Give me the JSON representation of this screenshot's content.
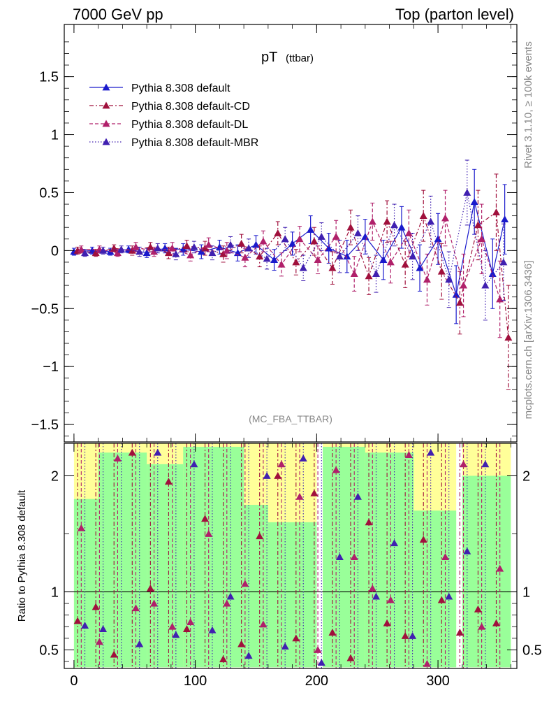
{
  "header": {
    "left": "7000 GeV pp",
    "right": "Top (parton level)"
  },
  "side_labels": {
    "rivet": "Rivet 3.1.10, ≥ 100k events",
    "mcplots": "mcplots.cern.ch [arXiv:1306.3436]"
  },
  "colors": {
    "default": "#1a1acc",
    "cd": "#a0103c",
    "dl": "#b0206a",
    "mbr": "#4020b0",
    "band_yellow": "#ffff99",
    "band_green": "#99ff99"
  },
  "chart_data": [
    {
      "type": "scatter",
      "title": "pT",
      "title_sub": "(ttbar)",
      "watermark": "(MC_FBA_TTBAR)",
      "xlabel": "",
      "ylabel": "",
      "xlim": [
        -8,
        365
      ],
      "ylim": [
        -1.65,
        1.95
      ],
      "yticks": [
        -1.5,
        -1,
        -0.5,
        0,
        0.5,
        1,
        1.5
      ],
      "ytick_labels": [
        "−1.5",
        "−1",
        "−0.5",
        "0",
        "0.5",
        "1",
        "1.5"
      ],
      "legend_position": "top-left",
      "series": [
        {
          "name": "Pythia 8.308 default",
          "style": "solid",
          "x": [
            0,
            15,
            30,
            45,
            60,
            75,
            90,
            105,
            120,
            135,
            150,
            165,
            180,
            195,
            210,
            225,
            240,
            255,
            270,
            285,
            300,
            315,
            330,
            345,
            355
          ],
          "y": [
            -0.01,
            0.0,
            -0.01,
            0.01,
            -0.02,
            0.02,
            0.01,
            -0.01,
            0.03,
            -0.02,
            0.05,
            -0.08,
            0.06,
            0.18,
            0.02,
            -0.05,
            0.12,
            -0.08,
            0.2,
            -0.15,
            0.1,
            -0.38,
            0.42,
            -0.2,
            0.27
          ],
          "err": [
            0.03,
            0.03,
            0.03,
            0.03,
            0.04,
            0.04,
            0.05,
            0.06,
            0.06,
            0.07,
            0.08,
            0.09,
            0.1,
            0.12,
            0.13,
            0.14,
            0.15,
            0.17,
            0.18,
            0.2,
            0.22,
            0.25,
            0.28,
            0.3,
            0.3
          ]
        },
        {
          "name": "Pythia 8.308 default-CD",
          "style": "dashdot",
          "x": [
            3,
            18,
            33,
            48,
            63,
            78,
            93,
            108,
            123,
            138,
            153,
            168,
            183,
            198,
            213,
            228,
            243,
            258,
            273,
            288,
            303,
            318,
            333,
            348,
            358
          ],
          "y": [
            0.0,
            -0.02,
            0.02,
            0.0,
            0.03,
            -0.02,
            0.04,
            0.02,
            -0.03,
            0.06,
            -0.05,
            0.15,
            -0.1,
            0.08,
            -0.15,
            0.2,
            -0.22,
            0.25,
            -0.12,
            0.3,
            -0.18,
            -0.45,
            0.22,
            0.33,
            -0.75
          ],
          "err": [
            0.03,
            0.03,
            0.03,
            0.04,
            0.04,
            0.05,
            0.05,
            0.06,
            0.07,
            0.08,
            0.09,
            0.1,
            0.11,
            0.12,
            0.14,
            0.15,
            0.16,
            0.18,
            0.2,
            0.22,
            0.24,
            0.27,
            0.3,
            0.33,
            0.45
          ]
        },
        {
          "name": "Pythia 8.308 default-DL",
          "style": "dashed",
          "x": [
            6,
            21,
            36,
            51,
            66,
            81,
            96,
            111,
            126,
            141,
            156,
            171,
            186,
            201,
            216,
            231,
            246,
            261,
            276,
            291,
            306,
            321,
            336,
            351
          ],
          "y": [
            0.01,
            0.01,
            -0.02,
            0.03,
            -0.01,
            0.02,
            -0.04,
            0.05,
            0.0,
            -0.06,
            0.08,
            -0.12,
            0.1,
            -0.08,
            0.12,
            -0.2,
            0.25,
            -0.1,
            0.15,
            -0.25,
            0.28,
            -0.3,
            0.1,
            -0.42
          ],
          "err": [
            0.03,
            0.03,
            0.03,
            0.04,
            0.04,
            0.05,
            0.05,
            0.06,
            0.07,
            0.08,
            0.09,
            0.1,
            0.11,
            0.12,
            0.14,
            0.15,
            0.16,
            0.18,
            0.2,
            0.22,
            0.24,
            0.27,
            0.3,
            0.33
          ]
        },
        {
          "name": "Pythia 8.308 default-MBR",
          "style": "dotted",
          "x": [
            9,
            24,
            39,
            54,
            69,
            84,
            99,
            114,
            129,
            144,
            159,
            174,
            189,
            204,
            219,
            234,
            249,
            264,
            279,
            294,
            309,
            324,
            339,
            354
          ],
          "y": [
            -0.02,
            0.0,
            0.01,
            -0.01,
            0.02,
            -0.03,
            0.03,
            -0.02,
            0.05,
            0.02,
            -0.07,
            0.1,
            -0.15,
            0.12,
            -0.05,
            0.15,
            -0.2,
            0.22,
            -0.05,
            0.25,
            -0.25,
            0.5,
            -0.3,
            -0.1
          ],
          "err": [
            0.03,
            0.03,
            0.03,
            0.04,
            0.04,
            0.05,
            0.05,
            0.06,
            0.07,
            0.08,
            0.09,
            0.1,
            0.11,
            0.12,
            0.14,
            0.15,
            0.16,
            0.18,
            0.2,
            0.22,
            0.24,
            0.28,
            0.3,
            0.33
          ]
        }
      ]
    },
    {
      "type": "scatter",
      "title": "",
      "ylabel": "Ratio to Pythia 8.308 default",
      "xlim": [
        -8,
        365
      ],
      "ylim": [
        0.34,
        2.28
      ],
      "yticks": [
        0.5,
        1,
        2
      ],
      "ytick_labels": [
        "0.5",
        "1",
        "2"
      ],
      "xticks": [
        0,
        100,
        200,
        300
      ],
      "xtick_labels": [
        "0",
        "100",
        "200",
        "300"
      ],
      "reference_line": 1,
      "band_green_bins": [
        {
          "x0": 0,
          "x1": 20,
          "lo": 0.35,
          "hi": 1.8
        },
        {
          "x0": 20,
          "x1": 60,
          "lo": 0.35,
          "hi": 2.2
        },
        {
          "x0": 60,
          "x1": 90,
          "lo": 0.35,
          "hi": 2.1
        },
        {
          "x0": 90,
          "x1": 140,
          "lo": 0.35,
          "hi": 2.25
        },
        {
          "x0": 140,
          "x1": 160,
          "lo": 0.35,
          "hi": 1.75
        },
        {
          "x0": 160,
          "x1": 200,
          "lo": 0.35,
          "hi": 1.6
        },
        {
          "x0": 205,
          "x1": 240,
          "lo": 0.35,
          "hi": 2.25
        },
        {
          "x0": 240,
          "x1": 280,
          "lo": 0.35,
          "hi": 2.2
        },
        {
          "x0": 280,
          "x1": 315,
          "lo": 0.35,
          "hi": 1.7
        },
        {
          "x0": 320,
          "x1": 360,
          "lo": 0.35,
          "hi": 2.0
        }
      ],
      "band_yellow_bins": [
        {
          "x0": 0,
          "x1": 200,
          "lo": 0.35,
          "hi": 2.28
        },
        {
          "x0": 205,
          "x1": 315,
          "lo": 0.35,
          "hi": 2.28
        },
        {
          "x0": 320,
          "x1": 360,
          "lo": 0.35,
          "hi": 2.28
        }
      ],
      "series": [
        {
          "name": "Pythia 8.308 default-CD",
          "style": "dashdot",
          "x": [
            3,
            18,
            33,
            48,
            63,
            78,
            93,
            108,
            123,
            138,
            153,
            168,
            183,
            198,
            213,
            228,
            243,
            258,
            273,
            288,
            303,
            318,
            333,
            348
          ],
          "y": [
            0.75,
            0.87,
            0.46,
            2.2,
            1.03,
            1.95,
            0.68,
            1.63,
            0.42,
            0.55,
            1.48,
            2.0,
            0.6,
            1.85,
            0.65,
            0.43,
            1.6,
            0.73,
            0.62,
            1.45,
            0.93,
            0.65,
            0.85,
            0.73
          ]
        },
        {
          "name": "Pythia 8.308 default-DL",
          "style": "dashed",
          "x": [
            6,
            21,
            36,
            51,
            66,
            81,
            96,
            111,
            126,
            141,
            156,
            171,
            186,
            201,
            216,
            231,
            246,
            261,
            276,
            291,
            306,
            321,
            336,
            351
          ],
          "y": [
            1.55,
            0.57,
            2.15,
            0.86,
            0.9,
            0.7,
            0.74,
            1.5,
            0.9,
            1.07,
            0.72,
            2.1,
            1.82,
            0.5,
            2.05,
            1.3,
            1.03,
            0.93,
            2.18,
            0.38,
            1.3,
            2.1,
            0.7,
            1.2
          ]
        },
        {
          "name": "Pythia 8.308 default-MBR",
          "style": "dotted",
          "x": [
            9,
            24,
            39,
            54,
            69,
            84,
            99,
            114,
            129,
            144,
            159,
            174,
            189,
            204,
            219,
            234,
            249,
            264,
            279,
            294,
            309,
            324,
            339
          ],
          "y": [
            0.71,
            0.68,
            0.35,
            0.55,
            2.2,
            0.63,
            2.1,
            0.67,
            0.96,
            0.45,
            2.0,
            0.53,
            2.15,
            0.39,
            1.3,
            1.82,
            0.96,
            1.42,
            0.62,
            2.2,
            0.96,
            1.35,
            2.1
          ]
        }
      ]
    }
  ]
}
